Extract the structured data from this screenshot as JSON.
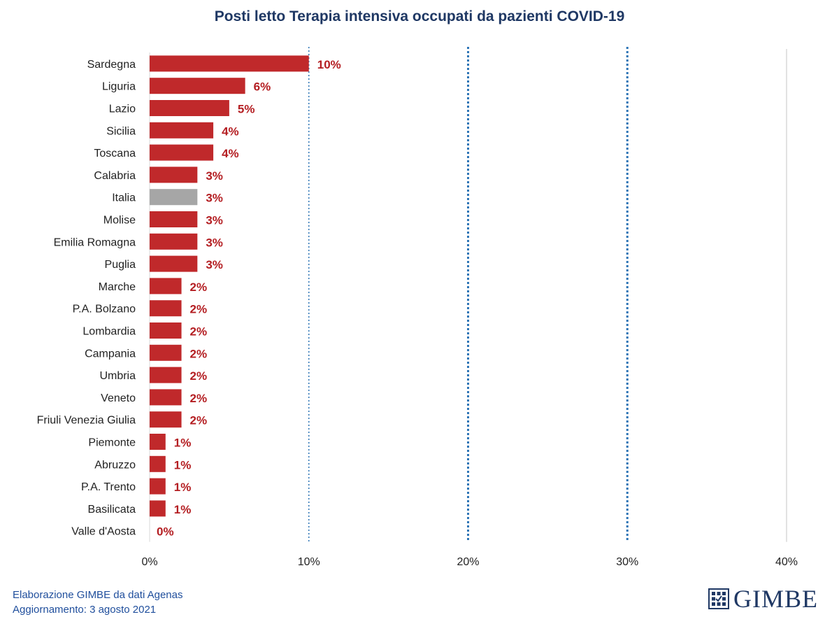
{
  "chart_data": {
    "type": "bar",
    "orientation": "horizontal",
    "title": "Posti letto Terapia  intensiva occupati da pazienti COVID-19",
    "categories": [
      "Sardegna",
      "Liguria",
      "Lazio",
      "Sicilia",
      "Toscana",
      "Calabria",
      "Italia",
      "Molise",
      "Emilia Romagna",
      "Puglia",
      "Marche",
      "P.A. Bolzano",
      "Lombardia",
      "Campania",
      "Umbria",
      "Veneto",
      "Friuli Venezia Giulia",
      "Piemonte",
      "Abruzzo",
      "P.A. Trento",
      "Basilicata",
      "Valle d'Aosta"
    ],
    "values": [
      10,
      6,
      5,
      4,
      4,
      3,
      3,
      3,
      3,
      3,
      2,
      2,
      2,
      2,
      2,
      2,
      2,
      1,
      1,
      1,
      1,
      0
    ],
    "data_labels": [
      "10%",
      "6%",
      "5%",
      "4%",
      "4%",
      "3%",
      "3%",
      "3%",
      "3%",
      "3%",
      "2%",
      "2%",
      "2%",
      "2%",
      "2%",
      "2%",
      "2%",
      "1%",
      "1%",
      "1%",
      "1%",
      "0%"
    ],
    "highlight_category": "Italia",
    "xlim": [
      0,
      40
    ],
    "x_ticks": [
      0,
      10,
      20,
      30,
      40
    ],
    "x_tick_labels": [
      "0%",
      "10%",
      "20%",
      "30%",
      "40%"
    ],
    "xlabel": "",
    "ylabel": "",
    "grid": true,
    "threshold_lines": [
      10,
      20,
      30
    ],
    "colors": {
      "bar": "#c0292b",
      "highlight_bar": "#a6a6a6",
      "label": "#b41e22",
      "threshold_line": "#2e75b6",
      "grid": "#d9d9d9"
    }
  },
  "footer": {
    "line1": "Elaborazione GIMBE da dati Agenas",
    "line2": "Aggiornamento: 3 agosto 2021"
  },
  "logo": {
    "text": "GIMBE",
    "icon": "gimbe-grid-icon"
  }
}
